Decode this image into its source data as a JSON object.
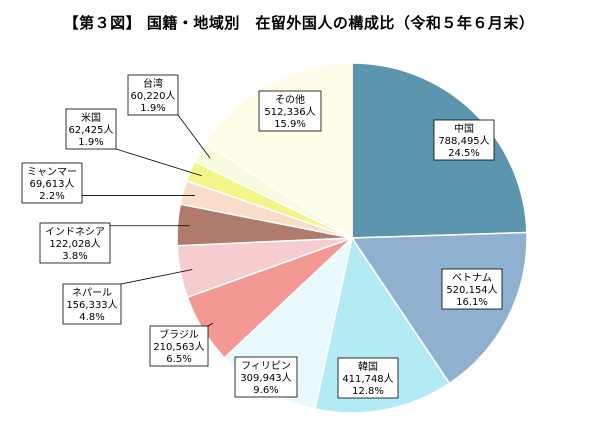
{
  "chart_data": {
    "type": "pie",
    "title": "【第３図】 国籍・地域別　在留外国人の構成比（令和５年６月末）",
    "slices": [
      {
        "name": "中国",
        "count": "788,495人",
        "percent": "24.5%",
        "value": 24.5,
        "color": "#5b96ae"
      },
      {
        "name": "ベトナム",
        "count": "520,154人",
        "percent": "16.1%",
        "value": 16.1,
        "color": "#8fb1cf"
      },
      {
        "name": "韓国",
        "count": "411,748人",
        "percent": "12.8%",
        "value": 12.8,
        "color": "#b2ebf4"
      },
      {
        "name": "フィリピン",
        "count": "309,943人",
        "percent": "9.6%",
        "value": 9.6,
        "color": "#e8fafd"
      },
      {
        "name": "ブラジル",
        "count": "210,563人",
        "percent": "6.5%",
        "value": 6.5,
        "color": "#f39893"
      },
      {
        "name": "ネパール",
        "count": "156,333人",
        "percent": "4.8%",
        "value": 4.8,
        "color": "#f6cccf"
      },
      {
        "name": "インドネシア",
        "count": "122,028人",
        "percent": "3.8%",
        "value": 3.8,
        "color": "#b07a6d"
      },
      {
        "name": "ミャンマー",
        "count": "69,613人",
        "percent": "2.2%",
        "value": 2.2,
        "color": "#f9dcc9"
      },
      {
        "name": "米国",
        "count": "62,425人",
        "percent": "1.9%",
        "value": 1.9,
        "color": "#f3f58a"
      },
      {
        "name": "台湾",
        "count": "60,220人",
        "percent": "1.9%",
        "value": 1.9,
        "color": "#fafae0"
      },
      {
        "name": "その他",
        "count": "512,336人",
        "percent": "15.9%",
        "value": 15.9,
        "color": "#fffde9"
      }
    ]
  }
}
